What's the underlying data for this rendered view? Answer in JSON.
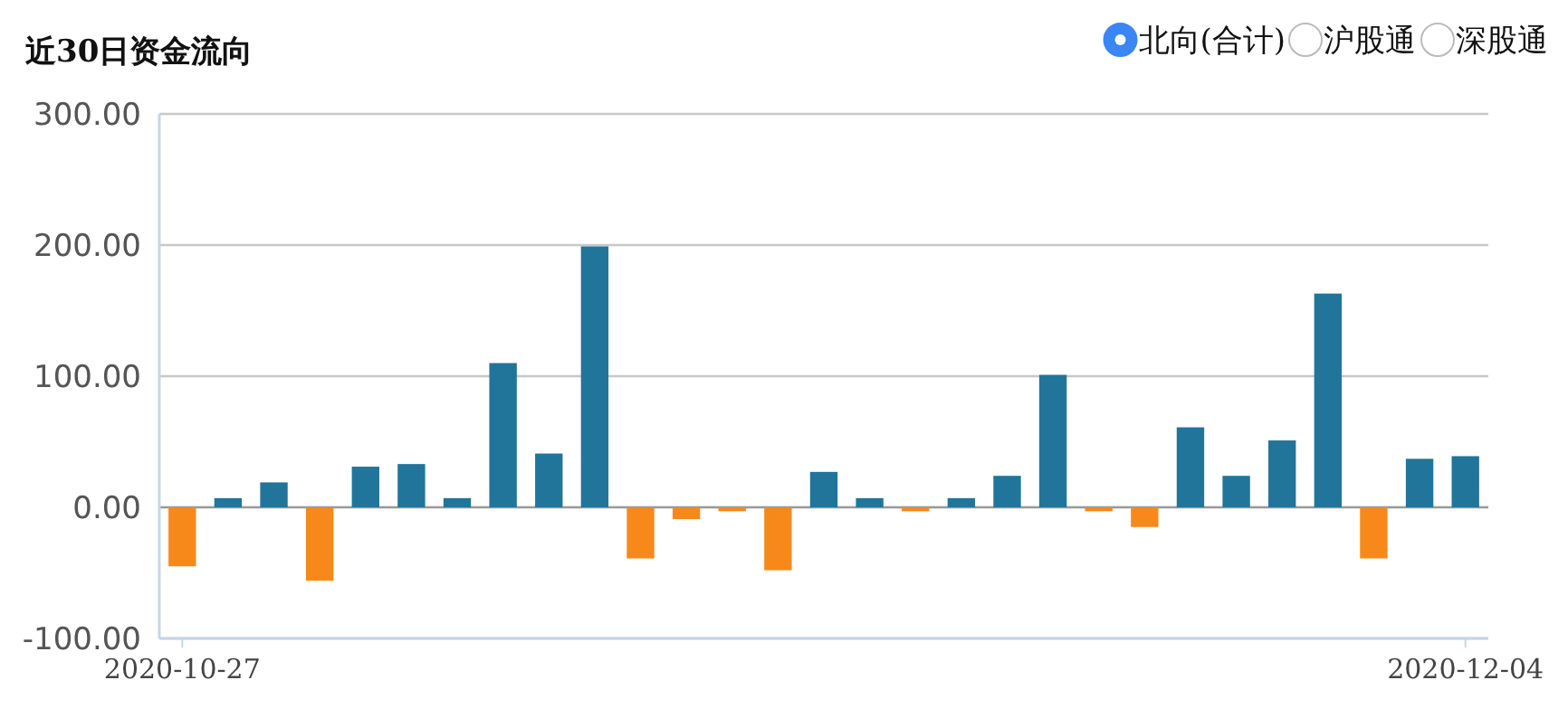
{
  "chart_data": {
    "type": "bar",
    "title": "近30日资金流向",
    "categories": [
      "2020-10-27",
      null,
      null,
      null,
      null,
      null,
      null,
      null,
      null,
      null,
      null,
      null,
      null,
      null,
      null,
      null,
      null,
      null,
      null,
      null,
      null,
      null,
      null,
      null,
      null,
      null,
      null,
      null,
      "2020-12-04"
    ],
    "series": [
      {
        "name": "北向(合计)",
        "color": "#3a86f5",
        "values": [
          -45,
          7,
          19,
          -56,
          31,
          33,
          7,
          110,
          41,
          199,
          -39,
          -9,
          -3,
          -48,
          27,
          7,
          -3,
          7,
          24,
          101,
          -3,
          -15,
          61,
          24,
          51,
          163,
          -39,
          37,
          39
        ],
        "colors": [
          "#f7891b",
          "#21759b",
          "#21759b",
          "#f7891b",
          "#21759b",
          "#21759b",
          "#21759b",
          "#21759b",
          "#21759b",
          "#21759b",
          "#f7891b",
          "#f7891b",
          "#f7891b",
          "#f7891b",
          "#21759b",
          "#21759b",
          "#f7891b",
          "#21759b",
          "#21759b",
          "#21759b",
          "#f7891b",
          "#f7891b",
          "#21759b",
          "#21759b",
          "#21759b",
          "#21759b",
          "#f7891b",
          "#21759b",
          "#21759b"
        ]
      }
    ],
    "annotations": [
      "沪股通",
      "深股通"
    ],
    "ylim": [
      -100,
      300
    ],
    "yticks": [
      {
        "value": -100,
        "label": "-100.00"
      },
      {
        "value": 0,
        "label": "0.00"
      },
      {
        "value": 100,
        "label": "100.00"
      },
      {
        "value": 200,
        "label": "200.00"
      },
      {
        "value": 300,
        "label": "300.00"
      }
    ],
    "grid": "y",
    "legend": "top right"
  }
}
